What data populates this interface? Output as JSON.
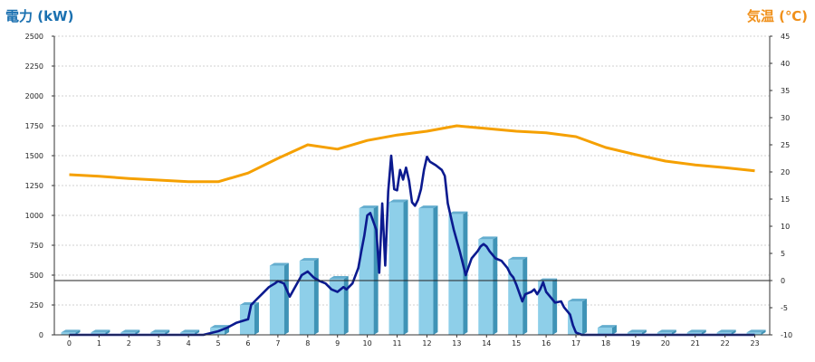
{
  "chart_data": {
    "type": "bar",
    "left_axis_label": "電力 (kW)",
    "right_axis_label": "気温 (℃)",
    "categories": [
      "0",
      "1",
      "2",
      "3",
      "4",
      "5",
      "6",
      "7",
      "8",
      "9",
      "10",
      "11",
      "12",
      "13",
      "14",
      "15",
      "16",
      "17",
      "18",
      "19",
      "20",
      "21",
      "22",
      "23"
    ],
    "left_axis": {
      "min": 0,
      "max": 2500,
      "ticks": [
        0,
        250,
        500,
        750,
        1000,
        1250,
        1500,
        1750,
        2000,
        2250,
        2500
      ]
    },
    "right_axis": {
      "min": -10,
      "max": 45,
      "ticks": [
        -10,
        -5,
        0,
        5,
        10,
        15,
        20,
        25,
        30,
        35,
        40,
        45
      ]
    },
    "zero_line_temp": 0,
    "series": [
      {
        "kind": "bar",
        "axis": "left",
        "values": [
          20,
          20,
          20,
          20,
          20,
          60,
          250,
          580,
          620,
          470,
          1060,
          1110,
          1060,
          1010,
          800,
          630,
          450,
          280,
          60,
          20,
          20,
          20,
          20,
          20
        ]
      },
      {
        "kind": "line",
        "axis": "right",
        "color": "#f5a000",
        "values": [
          19.5,
          19.2,
          18.8,
          18.5,
          18.2,
          18.2,
          19.8,
          22.5,
          25,
          24.2,
          25.8,
          26.8,
          27.5,
          28.5,
          28,
          27.5,
          27.2,
          26.5,
          24.5,
          23.2,
          22,
          21.3,
          20.8,
          20.2
        ]
      },
      {
        "kind": "line",
        "axis": "left",
        "color": "#0b1a8f",
        "x": [
          0,
          1,
          2,
          3,
          4,
          4.5,
          5,
          5.3,
          5.6,
          6,
          6.1,
          6.3,
          6.5,
          6.7,
          6.9,
          7,
          7.2,
          7.4,
          7.6,
          7.8,
          8,
          8.2,
          8.4,
          8.6,
          8.8,
          9,
          9.2,
          9.3,
          9.5,
          9.7,
          9.8,
          9.9,
          10,
          10.1,
          10.3,
          10.4,
          10.5,
          10.6,
          10.7,
          10.8,
          10.9,
          11,
          11.1,
          11.2,
          11.3,
          11.4,
          11.5,
          11.6,
          11.7,
          11.8,
          11.9,
          12,
          12.1,
          12.3,
          12.5,
          12.6,
          12.7,
          12.9,
          13.1,
          13.3,
          13.5,
          13.7,
          13.8,
          13.9,
          14.0,
          14.1,
          14.3,
          14.5,
          14.7,
          14.8,
          14.9,
          15,
          15.2,
          15.3,
          15.5,
          15.6,
          15.7,
          15.8,
          15.9,
          16,
          16.2,
          16.3,
          16.5,
          16.6,
          16.8,
          16.9,
          17,
          17.2,
          17.4,
          17.6,
          17.8,
          18,
          18.5,
          19,
          20,
          21,
          22,
          23
        ],
        "values": [
          0,
          0,
          0,
          0,
          0,
          0,
          30,
          60,
          100,
          130,
          250,
          300,
          350,
          400,
          430,
          450,
          430,
          320,
          410,
          500,
          530,
          480,
          450,
          430,
          380,
          360,
          400,
          380,
          430,
          560,
          700,
          830,
          1000,
          1020,
          880,
          520,
          1100,
          580,
          1200,
          1500,
          1220,
          1210,
          1380,
          1300,
          1400,
          1290,
          1110,
          1080,
          1130,
          1220,
          1380,
          1490,
          1450,
          1420,
          1380,
          1330,
          1100,
          880,
          700,
          500,
          640,
          700,
          740,
          760,
          740,
          700,
          640,
          620,
          560,
          510,
          480,
          420,
          280,
          340,
          360,
          380,
          340,
          380,
          440,
          360,
          300,
          270,
          280,
          230,
          170,
          80,
          20,
          0,
          0,
          0,
          0,
          0,
          0,
          0,
          0,
          0,
          0,
          0
        ]
      }
    ]
  }
}
